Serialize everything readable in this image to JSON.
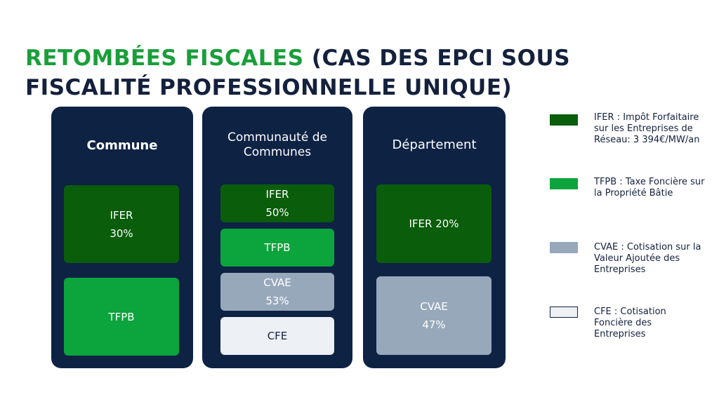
{
  "title": {
    "highlight": "Retombées fiscales",
    "rest": " (cas des EPCi sous fiscalité professionnelle unique)"
  },
  "colors": {
    "ifer": "#0a5d0a",
    "tfpb": "#0ca43c",
    "cvae": "#97a8bb",
    "cfe": "#edf0f5",
    "panel": "#0e2244",
    "title_accent": "#1a9e3a",
    "title_text": "#14213d"
  },
  "panels": [
    {
      "title": "Commune",
      "boxes": [
        {
          "type": "ifer",
          "line1": "IFER",
          "line2": "30%"
        },
        {
          "type": "tfpb",
          "line1": "TFPB",
          "line2": ""
        }
      ]
    },
    {
      "title": "Communauté de Communes",
      "boxes": [
        {
          "type": "ifer",
          "line1": "IFER",
          "line2": "50%"
        },
        {
          "type": "tfpb",
          "line1": "TFPB",
          "line2": ""
        },
        {
          "type": "cvae",
          "line1": "CVAE",
          "line2": "53%"
        },
        {
          "type": "cfe",
          "line1": "CFE",
          "line2": ""
        }
      ]
    },
    {
      "title": "Département",
      "boxes": [
        {
          "type": "ifer",
          "line1": "IFER 20%",
          "line2": ""
        },
        {
          "type": "cvae",
          "line1": "CVAE",
          "line2": "47%"
        }
      ]
    }
  ],
  "legend": [
    {
      "type": "ifer",
      "text": "IFER : Impôt Forfaitaire sur les Entreprises de Réseau: 3 394€/MW/an"
    },
    {
      "type": "tfpb",
      "text": "TFPB : Taxe Foncière sur la Propriété Bâtie"
    },
    {
      "type": "cvae",
      "text": "CVAE : Cotisation sur la Valeur Ajoutée des Entreprises"
    },
    {
      "type": "cfe",
      "text": "CFE : Cotisation Foncière des Entreprises"
    }
  ]
}
